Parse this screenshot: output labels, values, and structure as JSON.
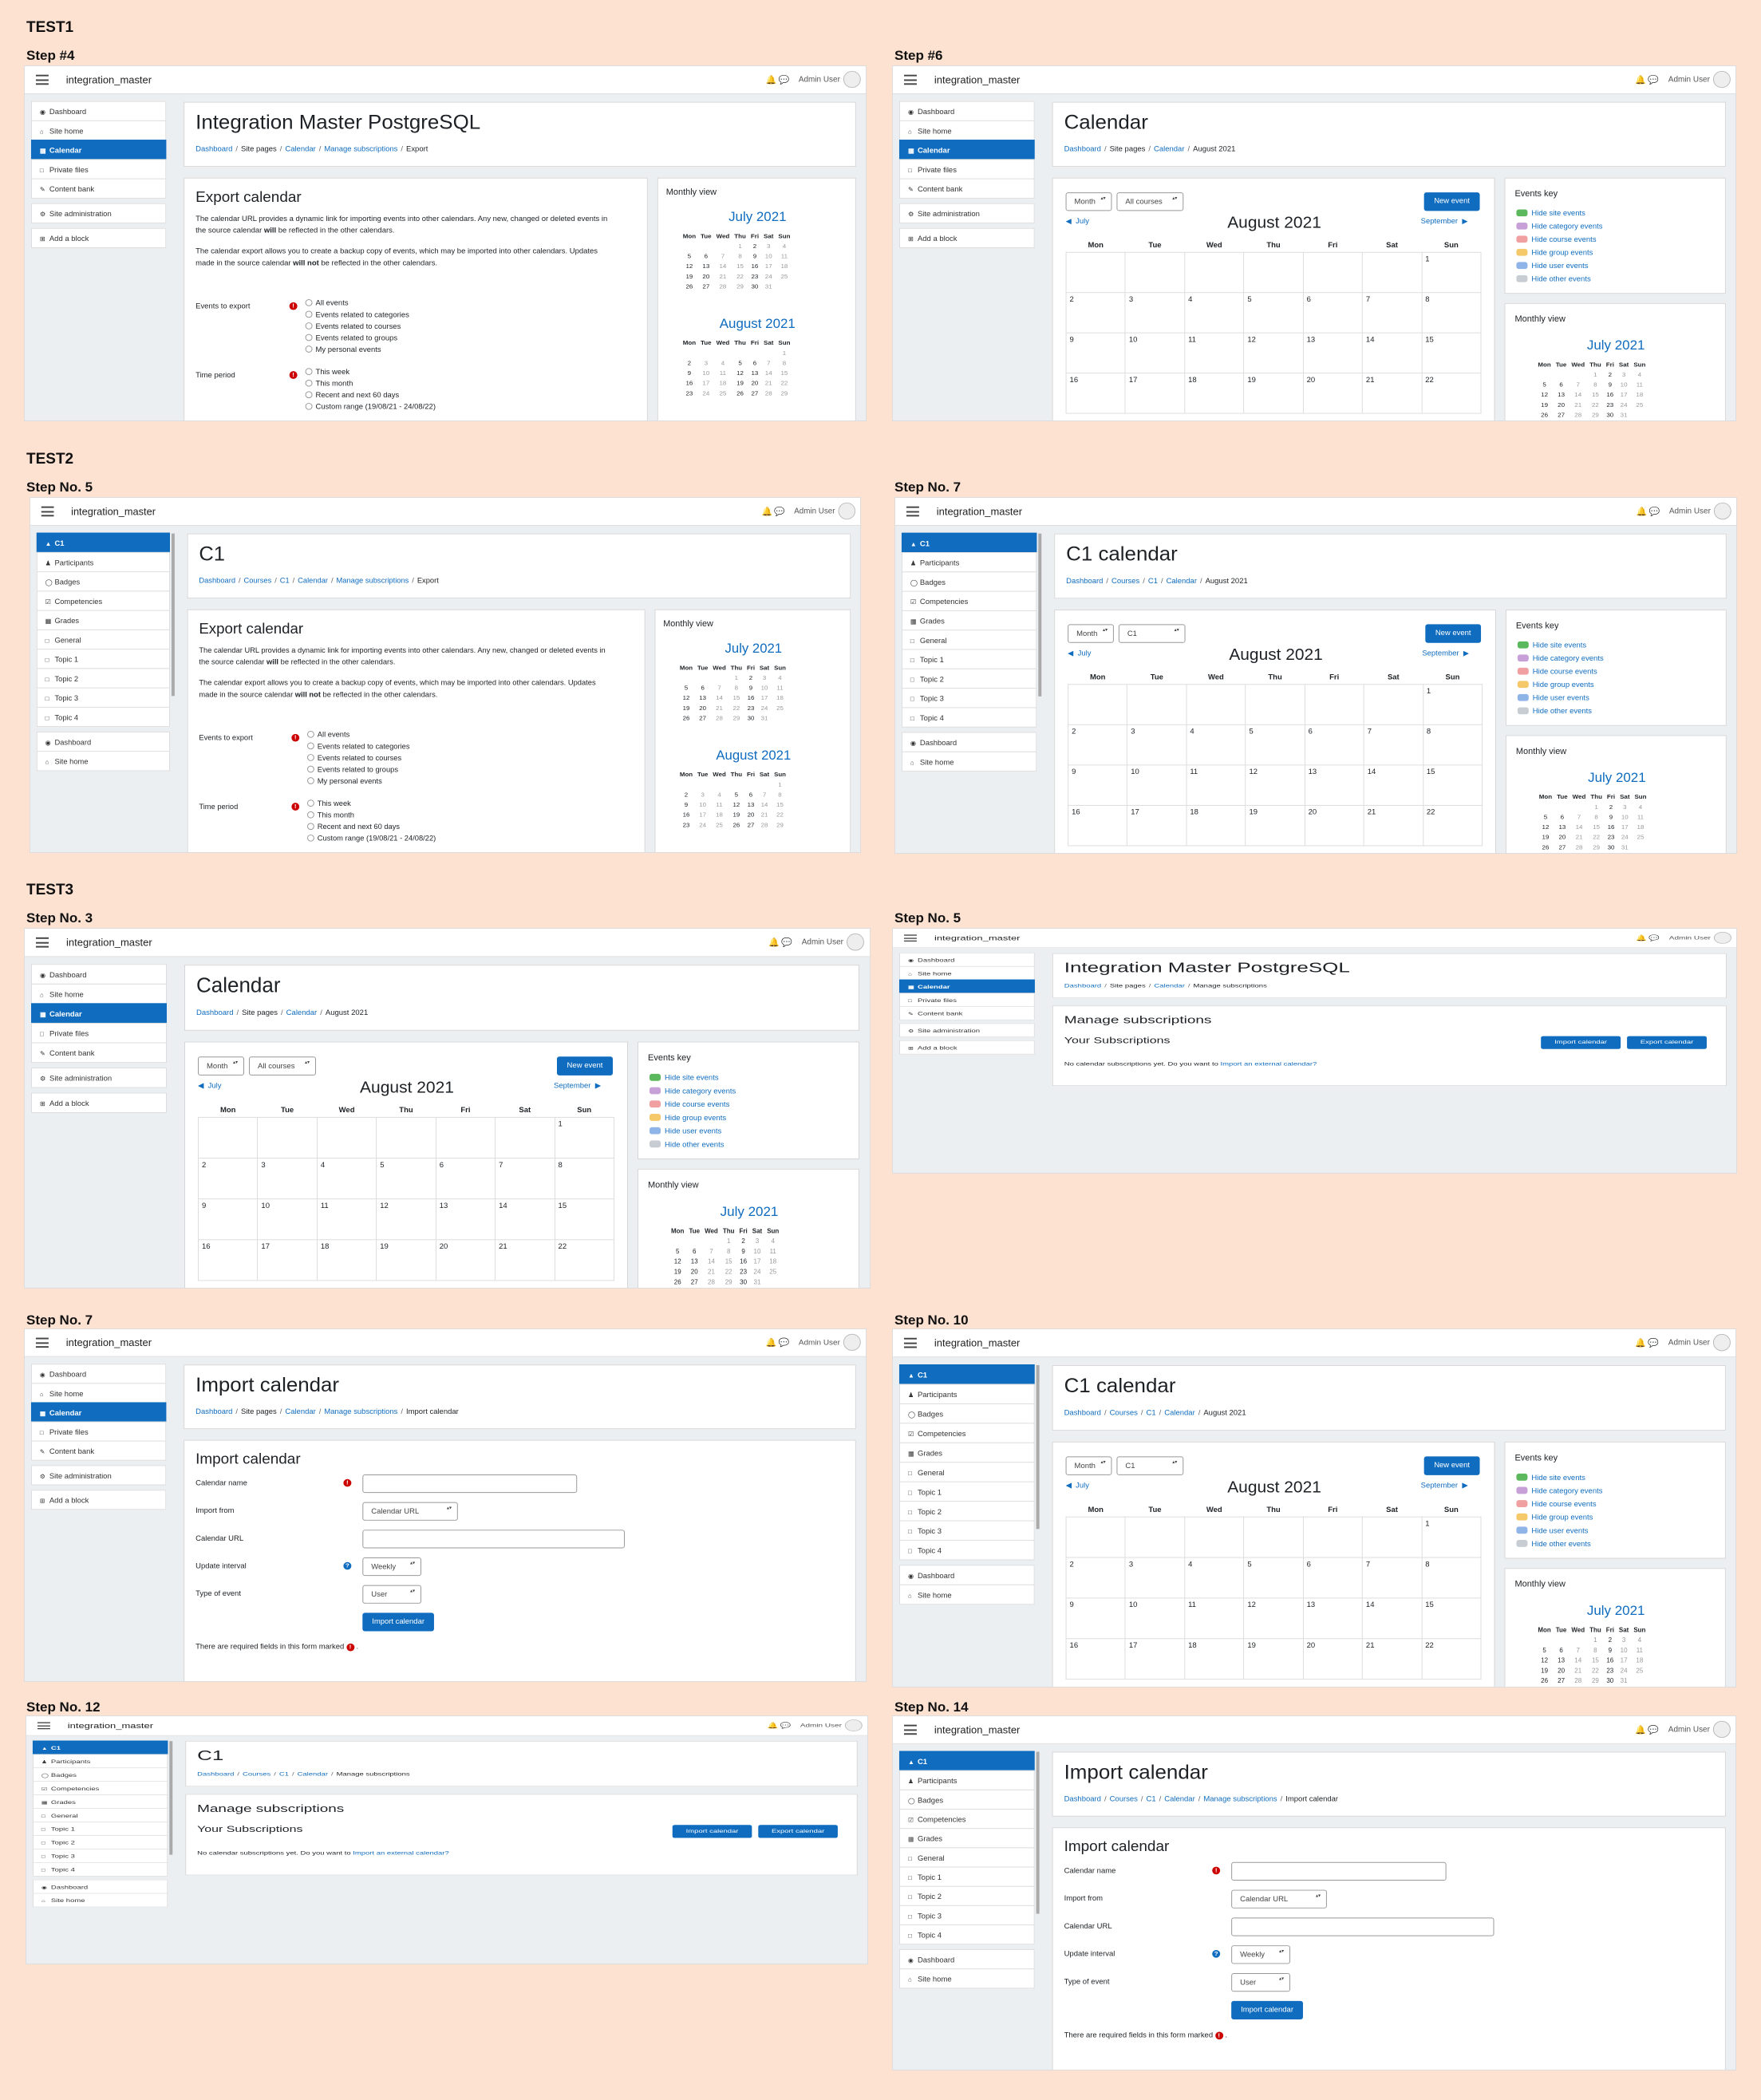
{
  "sections": {
    "test1": "TEST1",
    "test2": "TEST2",
    "test3": "TEST3"
  },
  "steps": {
    "s1": "Step #4",
    "s2": "Step #6",
    "s3": "Step No. 5",
    "s4": "Step No. 7",
    "s5": "Step No. 3",
    "s6": "Step No. 5",
    "s7": "Step No. 7",
    "s8": "Step No. 10",
    "s9": "Step No. 12",
    "s10": "Step No. 14"
  },
  "nav": {
    "site": "integration_master",
    "user": "Admin User"
  },
  "side": {
    "dashboard": "Dashboard",
    "site_home": "Site home",
    "calendar": "Calendar",
    "private_files": "Private files",
    "content_bank": "Content bank",
    "site_admin": "Site administration",
    "add_block": "Add a block",
    "c1": "C1",
    "participants": "Participants",
    "badges": "Badges",
    "competencies": "Competencies",
    "grades": "Grades",
    "general": "General",
    "topic1": "Topic 1",
    "topic2": "Topic 2",
    "topic3": "Topic 3",
    "topic4": "Topic 4"
  },
  "titles": {
    "imp": "Integration Master PostgreSQL",
    "cal": "Calendar",
    "c1": "C1",
    "c1cal": "C1 calendar",
    "import": "Import calendar"
  },
  "crumbs": {
    "dashboard": "Dashboard",
    "site_pages": "Site pages",
    "calendar": "Calendar",
    "manage": "Manage subscriptions",
    "export": "Export",
    "courses": "Courses",
    "c1": "C1",
    "aug": "August 2021",
    "import": "Import calendar"
  },
  "export": {
    "heading": "Export calendar",
    "p1a": "The calendar URL provides a dynamic link for importing events into other calendars. Any new, changed or deleted events in the source calendar ",
    "p1b": "will",
    "p1c": " be reflected in the other calendars.",
    "p2a": "The calendar export allows you to create a backup copy of events, which may be imported into other calendars. Updates made in the source calendar ",
    "p2b": "will not",
    "p2c": " be reflected in the other calendars.",
    "events_label": "Events to export",
    "time_label": "Time period",
    "ev_all": "All events",
    "ev_cat": "Events related to categories",
    "ev_course": "Events related to courses",
    "ev_group": "Events related to groups",
    "ev_personal": "My personal events",
    "tp_week": "This week",
    "tp_month": "This month",
    "tp_recent": "Recent and next 60 days",
    "tp_custom": "Custom range (19/08/21 - 24/08/22)"
  },
  "monthly": {
    "title": "Monthly view",
    "july": "July 2021",
    "august": "August 2021",
    "dow": [
      "Mon",
      "Tue",
      "Wed",
      "Thu",
      "Fri",
      "Sat",
      "Sun"
    ],
    "july_weeks": [
      [
        "",
        "",
        "",
        "1",
        "2",
        "3",
        "4"
      ],
      [
        "5",
        "6",
        "7",
        "8",
        "9",
        "10",
        "11"
      ],
      [
        "12",
        "13",
        "14",
        "15",
        "16",
        "17",
        "18"
      ],
      [
        "19",
        "20",
        "21",
        "22",
        "23",
        "24",
        "25"
      ],
      [
        "26",
        "27",
        "28",
        "29",
        "30",
        "31",
        ""
      ]
    ],
    "aug_weeks": [
      [
        "",
        "",
        "",
        "",
        "",
        "",
        "1"
      ],
      [
        "2",
        "3",
        "4",
        "5",
        "6",
        "7",
        "8"
      ],
      [
        "9",
        "10",
        "11",
        "12",
        "13",
        "14",
        "15"
      ],
      [
        "16",
        "17",
        "18",
        "19",
        "20",
        "21",
        "22"
      ],
      [
        "23",
        "24",
        "25",
        "26",
        "27",
        "28",
        "29"
      ]
    ]
  },
  "calendar": {
    "month_sel": "Month",
    "all_courses": "All courses",
    "c1_sel": "C1",
    "new_event": "New event",
    "prev": "July",
    "next": "September",
    "heading": "August 2021",
    "dow": [
      "Mon",
      "Tue",
      "Wed",
      "Thu",
      "Fri",
      "Sat",
      "Sun"
    ],
    "weeks": [
      [
        "",
        "",
        "",
        "",
        "",
        "",
        "1"
      ],
      [
        "2",
        "3",
        "4",
        "5",
        "6",
        "7",
        "8"
      ],
      [
        "9",
        "10",
        "11",
        "12",
        "13",
        "14",
        "15"
      ],
      [
        "16",
        "17",
        "18",
        "19",
        "20",
        "21",
        "22"
      ]
    ]
  },
  "events_key": {
    "title": "Events key",
    "items": [
      "Hide site events",
      "Hide category events",
      "Hide course events",
      "Hide group events",
      "Hide user events",
      "Hide other events"
    ],
    "colors": [
      "#5cb85c",
      "#c8a0d8",
      "#f0a0a0",
      "#f5c96a",
      "#8fb5e8",
      "#c7cdd3"
    ]
  },
  "manage": {
    "heading": "Manage subscriptions",
    "your": "Your Subscriptions",
    "import_btn": "Import calendar",
    "export_btn": "Export calendar",
    "none": "No calendar subscriptions yet. Do you want to ",
    "link": "Import an external calendar?"
  },
  "importform": {
    "heading": "Import calendar",
    "name": "Calendar name",
    "from": "Import from",
    "from_val": "Calendar URL",
    "url": "Calendar URL",
    "interval": "Update interval",
    "interval_val": "Weekly",
    "type": "Type of event",
    "type_val": "User",
    "submit": "Import calendar",
    "required": "There are required fields in this form marked"
  }
}
